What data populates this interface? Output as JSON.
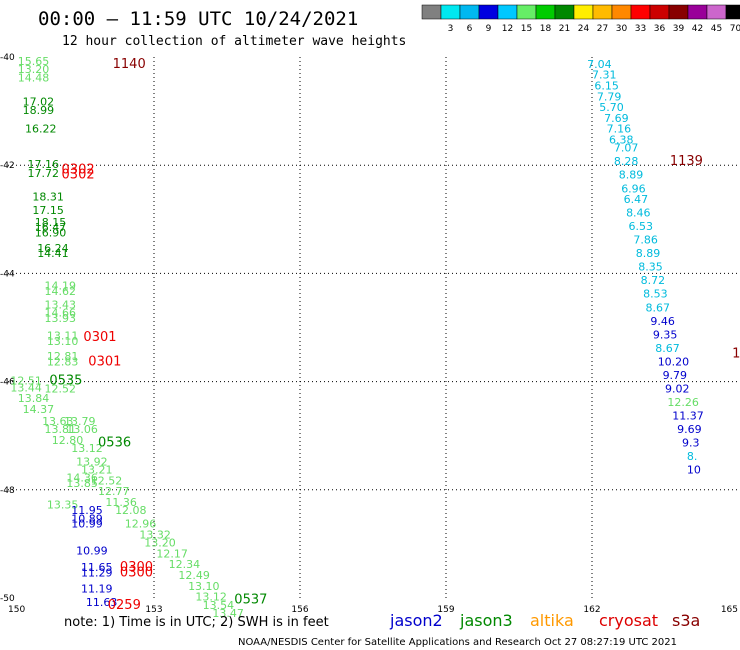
{
  "header": {
    "title": "00:00 — 11:59 UTC 10/24/2021",
    "subtitle": "12 hour collection of altimeter wave heights"
  },
  "legend": {
    "unit": "(ft)",
    "bins": [
      {
        "label": "",
        "color": "#808080"
      },
      {
        "label": "3",
        "color": "#00e8f0"
      },
      {
        "label": "6",
        "color": "#00b8f0"
      },
      {
        "label": "9",
        "color": "#0000e0"
      },
      {
        "label": "12",
        "color": "#00c8ff"
      },
      {
        "label": "15",
        "color": "#66ee66"
      },
      {
        "label": "18",
        "color": "#00cc00"
      },
      {
        "label": "21",
        "color": "#008800"
      },
      {
        "label": "24",
        "color": "#ffee00"
      },
      {
        "label": "27",
        "color": "#ffbb00"
      },
      {
        "label": "30",
        "color": "#ff8800"
      },
      {
        "label": "33",
        "color": "#ff0000"
      },
      {
        "label": "36",
        "color": "#cc0000"
      },
      {
        "label": "39",
        "color": "#880000"
      },
      {
        "label": "42",
        "color": "#990099"
      },
      {
        "label": "45",
        "color": "#cc66cc"
      },
      {
        "label": "70",
        "color": "#000000"
      }
    ]
  },
  "footer": {
    "note": "note:  1) Time is in UTC;  2) SWH is in feet",
    "satellites": [
      {
        "name": "jason2",
        "color": "#0000cc"
      },
      {
        "name": "jason3",
        "color": "#008800"
      },
      {
        "name": "altika",
        "color": "#ff9900"
      },
      {
        "name": "cryosat",
        "color": "#dd0000"
      },
      {
        "name": "s3a",
        "color": "#880000"
      }
    ],
    "credit": "NOAA/NESDIS Center for Satellite Applications and Research     Oct 27 08:27:19 UTC 2021"
  },
  "colors": {
    "cyan": "#00bbdd",
    "blue": "#0000cc",
    "lightgreen": "#66dd66",
    "green": "#008800",
    "red": "#ee0000",
    "darkred": "#880000"
  },
  "chart_data": {
    "type": "scatter",
    "xlabel": "",
    "ylabel": "",
    "xlim": [
      150,
      165
    ],
    "ylim": [
      -50,
      -40
    ],
    "x_ticks": [
      {
        "v": 150,
        "label": "150"
      },
      {
        "v": 153,
        "label": "153"
      },
      {
        "v": 156,
        "label": "156"
      },
      {
        "v": 159,
        "label": "159"
      },
      {
        "v": 162,
        "label": "162"
      },
      {
        "v": 165,
        "label": "165"
      }
    ],
    "y_ticks": [
      {
        "v": -40,
        "label": "-40"
      },
      {
        "v": -42,
        "label": "-42"
      },
      {
        "v": -44,
        "label": "-44"
      },
      {
        "v": -46,
        "label": "-46"
      },
      {
        "v": -48,
        "label": "-48"
      },
      {
        "v": -50,
        "label": "-50"
      }
    ],
    "grid": true,
    "points": [
      {
        "x": 150.2,
        "y": -40.15,
        "v": "15.65",
        "c": "lightgreen"
      },
      {
        "x": 150.2,
        "y": -40.3,
        "v": "13.20",
        "c": "lightgreen"
      },
      {
        "x": 150.2,
        "y": -40.45,
        "v": "14.48",
        "c": "lightgreen"
      },
      {
        "x": 150.3,
        "y": -40.9,
        "v": "17.02",
        "c": "green"
      },
      {
        "x": 150.3,
        "y": -41.05,
        "v": "18.99",
        "c": "green"
      },
      {
        "x": 150.35,
        "y": -41.4,
        "v": "16.22",
        "c": "green"
      },
      {
        "x": 150.4,
        "y": -42.05,
        "v": "17.16",
        "c": "green"
      },
      {
        "x": 150.4,
        "y": -42.22,
        "v": "17.72",
        "c": "green"
      },
      {
        "x": 150.5,
        "y": -42.65,
        "v": "18.31",
        "c": "green"
      },
      {
        "x": 150.5,
        "y": -42.9,
        "v": "17.15",
        "c": "green"
      },
      {
        "x": 150.55,
        "y": -43.12,
        "v": "18.15",
        "c": "green"
      },
      {
        "x": 150.55,
        "y": -43.22,
        "v": "16.47",
        "c": "green"
      },
      {
        "x": 150.55,
        "y": -43.32,
        "v": "16.90",
        "c": "green"
      },
      {
        "x": 150.6,
        "y": -43.6,
        "v": "16.24",
        "c": "green"
      },
      {
        "x": 150.6,
        "y": -43.7,
        "v": "14.41",
        "c": "green"
      },
      {
        "x": 150.75,
        "y": -44.3,
        "v": "14.19",
        "c": "lightgreen"
      },
      {
        "x": 150.75,
        "y": -44.4,
        "v": "14.62",
        "c": "lightgreen"
      },
      {
        "x": 150.75,
        "y": -44.65,
        "v": "13.43",
        "c": "lightgreen"
      },
      {
        "x": 150.75,
        "y": -44.8,
        "v": "14.66",
        "c": "lightgreen"
      },
      {
        "x": 150.75,
        "y": -44.9,
        "v": "13.93",
        "c": "lightgreen"
      },
      {
        "x": 150.8,
        "y": -45.22,
        "v": "13.11",
        "c": "lightgreen"
      },
      {
        "x": 150.8,
        "y": -45.32,
        "v": "13.10",
        "c": "lightgreen"
      },
      {
        "x": 150.8,
        "y": -45.6,
        "v": "12.81",
        "c": "lightgreen"
      },
      {
        "x": 150.8,
        "y": -45.7,
        "v": "12.83",
        "c": "lightgreen"
      },
      {
        "x": 150.05,
        "y": -46.05,
        "v": "12.51",
        "c": "lightgreen"
      },
      {
        "x": 150.05,
        "y": -46.18,
        "v": "13.44",
        "c": "lightgreen"
      },
      {
        "x": 150.2,
        "y": -46.38,
        "v": "13.84",
        "c": "lightgreen"
      },
      {
        "x": 150.3,
        "y": -46.58,
        "v": "14.37",
        "c": "lightgreen"
      },
      {
        "x": 150.75,
        "y": -46.2,
        "v": "12.52",
        "c": "lightgreen"
      },
      {
        "x": 150.7,
        "y": -46.8,
        "v": "13.63",
        "c": "lightgreen"
      },
      {
        "x": 151.15,
        "y": -46.8,
        "v": "13.79",
        "c": "lightgreen"
      },
      {
        "x": 150.75,
        "y": -46.95,
        "v": "13.81",
        "c": "lightgreen"
      },
      {
        "x": 151.2,
        "y": -46.95,
        "v": "13.06",
        "c": "lightgreen"
      },
      {
        "x": 150.9,
        "y": -47.15,
        "v": "12.80",
        "c": "lightgreen"
      },
      {
        "x": 151.3,
        "y": -47.3,
        "v": "13.12",
        "c": "lightgreen"
      },
      {
        "x": 151.4,
        "y": -47.55,
        "v": "13.92",
        "c": "lightgreen"
      },
      {
        "x": 151.5,
        "y": -47.7,
        "v": "13.21",
        "c": "lightgreen"
      },
      {
        "x": 151.2,
        "y": -47.85,
        "v": "14.36",
        "c": "lightgreen"
      },
      {
        "x": 151.2,
        "y": -47.95,
        "v": "13.85",
        "c": "lightgreen"
      },
      {
        "x": 151.7,
        "y": -47.9,
        "v": "12.52",
        "c": "lightgreen"
      },
      {
        "x": 151.85,
        "y": -48.1,
        "v": "12.77",
        "c": "lightgreen"
      },
      {
        "x": 150.8,
        "y": -48.35,
        "v": "13.35",
        "c": "lightgreen"
      },
      {
        "x": 152.0,
        "y": -48.3,
        "v": "11.36",
        "c": "lightgreen"
      },
      {
        "x": 152.2,
        "y": -48.45,
        "v": "12.08",
        "c": "lightgreen"
      },
      {
        "x": 152.4,
        "y": -48.7,
        "v": "12.96",
        "c": "lightgreen"
      },
      {
        "x": 152.7,
        "y": -48.9,
        "v": "13.32",
        "c": "lightgreen"
      },
      {
        "x": 152.8,
        "y": -49.05,
        "v": "13.20",
        "c": "lightgreen"
      },
      {
        "x": 153.05,
        "y": -49.25,
        "v": "12.17",
        "c": "lightgreen"
      },
      {
        "x": 153.3,
        "y": -49.45,
        "v": "12.34",
        "c": "lightgreen"
      },
      {
        "x": 153.5,
        "y": -49.65,
        "v": "12.49",
        "c": "lightgreen"
      },
      {
        "x": 153.7,
        "y": -49.85,
        "v": "13.10",
        "c": "lightgreen"
      },
      {
        "x": 153.85,
        "y": -50.05,
        "v": "13.12",
        "c": "lightgreen"
      },
      {
        "x": 154.0,
        "y": -50.2,
        "v": "13.54",
        "c": "lightgreen"
      },
      {
        "x": 154.2,
        "y": -50.35,
        "v": "13.47",
        "c": "lightgreen"
      },
      {
        "x": 151.3,
        "y": -48.45,
        "v": "11.95",
        "c": "blue"
      },
      {
        "x": 151.3,
        "y": -48.6,
        "v": "10.89",
        "c": "blue"
      },
      {
        "x": 151.3,
        "y": -48.7,
        "v": "10.99",
        "c": "blue"
      },
      {
        "x": 151.4,
        "y": -49.2,
        "v": "10.99",
        "c": "blue"
      },
      {
        "x": 151.5,
        "y": -49.5,
        "v": "11.65",
        "c": "blue"
      },
      {
        "x": 151.5,
        "y": -49.6,
        "v": "11.29",
        "c": "blue"
      },
      {
        "x": 151.5,
        "y": -49.9,
        "v": "11.19",
        "c": "blue"
      },
      {
        "x": 151.6,
        "y": -50.15,
        "v": "11.63",
        "c": "blue"
      },
      {
        "x": 161.9,
        "y": -40.2,
        "v": "7.04",
        "c": "cyan"
      },
      {
        "x": 162.0,
        "y": -40.4,
        "v": "7.31",
        "c": "cyan"
      },
      {
        "x": 162.05,
        "y": -40.6,
        "v": "6.15",
        "c": "cyan"
      },
      {
        "x": 162.1,
        "y": -40.8,
        "v": "7.79",
        "c": "cyan"
      },
      {
        "x": 162.15,
        "y": -41.0,
        "v": "5.70",
        "c": "cyan"
      },
      {
        "x": 162.25,
        "y": -41.2,
        "v": "7.69",
        "c": "cyan"
      },
      {
        "x": 162.3,
        "y": -41.4,
        "v": "7.16",
        "c": "cyan"
      },
      {
        "x": 162.35,
        "y": -41.6,
        "v": "6.38",
        "c": "cyan"
      },
      {
        "x": 162.45,
        "y": -41.75,
        "v": "7.07",
        "c": "cyan"
      },
      {
        "x": 162.45,
        "y": -42.0,
        "v": "8.28",
        "c": "cyan"
      },
      {
        "x": 162.55,
        "y": -42.25,
        "v": "8.89",
        "c": "cyan"
      },
      {
        "x": 162.6,
        "y": -42.5,
        "v": "6.96",
        "c": "cyan"
      },
      {
        "x": 162.65,
        "y": -42.7,
        "v": "6.47",
        "c": "cyan"
      },
      {
        "x": 162.7,
        "y": -42.95,
        "v": "8.46",
        "c": "cyan"
      },
      {
        "x": 162.75,
        "y": -43.2,
        "v": "6.53",
        "c": "cyan"
      },
      {
        "x": 162.85,
        "y": -43.45,
        "v": "7.86",
        "c": "cyan"
      },
      {
        "x": 162.9,
        "y": -43.7,
        "v": "8.89",
        "c": "cyan"
      },
      {
        "x": 162.95,
        "y": -43.95,
        "v": "8.35",
        "c": "cyan"
      },
      {
        "x": 163.0,
        "y": -44.2,
        "v": "8.72",
        "c": "cyan"
      },
      {
        "x": 163.05,
        "y": -44.45,
        "v": "8.53",
        "c": "cyan"
      },
      {
        "x": 163.1,
        "y": -44.7,
        "v": "8.67",
        "c": "cyan"
      },
      {
        "x": 163.2,
        "y": -44.95,
        "v": "9.46",
        "c": "blue"
      },
      {
        "x": 163.25,
        "y": -45.2,
        "v": "9.35",
        "c": "blue"
      },
      {
        "x": 163.3,
        "y": -45.45,
        "v": "8.67",
        "c": "cyan"
      },
      {
        "x": 163.35,
        "y": -45.7,
        "v": "10.20",
        "c": "blue"
      },
      {
        "x": 163.45,
        "y": -45.95,
        "v": "9.79",
        "c": "blue"
      },
      {
        "x": 163.5,
        "y": -46.2,
        "v": "9.02",
        "c": "blue"
      },
      {
        "x": 163.55,
        "y": -46.45,
        "v": "12.26",
        "c": "lightgreen"
      },
      {
        "x": 163.65,
        "y": -46.7,
        "v": "11.37",
        "c": "blue"
      },
      {
        "x": 163.75,
        "y": -46.95,
        "v": "9.69",
        "c": "blue"
      },
      {
        "x": 163.85,
        "y": -47.2,
        "v": "9.3",
        "c": "blue"
      },
      {
        "x": 163.95,
        "y": -47.45,
        "v": "8.",
        "c": "cyan"
      },
      {
        "x": 163.95,
        "y": -47.7,
        "v": "10",
        "c": "blue"
      }
    ],
    "passes": [
      {
        "x": 152.15,
        "y": -40.2,
        "t": "1140",
        "c": "darkred"
      },
      {
        "x": 163.6,
        "y": -42.0,
        "t": "1139",
        "c": "darkred"
      },
      {
        "x": 151.1,
        "y": -42.15,
        "t": "0302",
        "c": "red"
      },
      {
        "x": 151.1,
        "y": -42.25,
        "t": "0302",
        "c": "red"
      },
      {
        "x": 151.55,
        "y": -45.25,
        "t": "0301",
        "c": "red"
      },
      {
        "x": 151.65,
        "y": -45.7,
        "t": "0301",
        "c": "red"
      },
      {
        "x": 150.85,
        "y": -46.05,
        "t": "0535",
        "c": "green"
      },
      {
        "x": 151.85,
        "y": -47.2,
        "t": "0536",
        "c": "green"
      },
      {
        "x": 154.65,
        "y": -50.1,
        "t": "0537",
        "c": "green"
      },
      {
        "x": 152.3,
        "y": -49.5,
        "t": "0300",
        "c": "red"
      },
      {
        "x": 152.3,
        "y": -49.6,
        "t": "0300",
        "c": "red"
      },
      {
        "x": 152.05,
        "y": -50.2,
        "t": "0259",
        "c": "red"
      },
      {
        "x": 164.88,
        "y": -45.55,
        "t": "1",
        "c": "darkred"
      }
    ]
  }
}
